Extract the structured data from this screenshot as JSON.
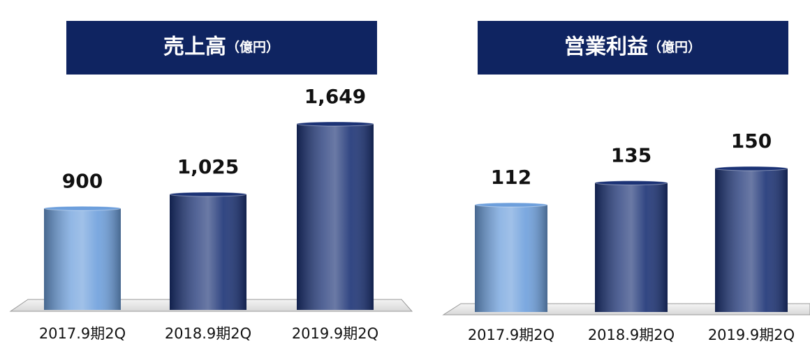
{
  "chart_data": [
    {
      "type": "bar",
      "title": "売上高",
      "unit": "（億円）",
      "categories": [
        "2017.9期2Q",
        "2018.9期2Q",
        "2019.9期2Q"
      ],
      "values": [
        900,
        1025,
        1649
      ],
      "value_labels": [
        "900",
        "1,025",
        "1,649"
      ],
      "colors": [
        "#6d9fdc",
        "#1b3275",
        "#1b3275"
      ]
    },
    {
      "type": "bar",
      "title": "営業利益",
      "unit": "（億円）",
      "categories": [
        "2017.9期2Q",
        "2018.9期2Q",
        "2019.9期2Q"
      ],
      "values": [
        112,
        135,
        150
      ],
      "value_labels": [
        "112",
        "135",
        "150"
      ],
      "colors": [
        "#6d9fdc",
        "#1b3275",
        "#1b3275"
      ]
    }
  ]
}
